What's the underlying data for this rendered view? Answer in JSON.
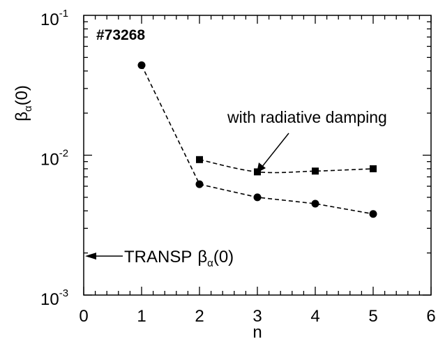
{
  "chart_data": {
    "type": "line",
    "title": "",
    "xlabel": "n",
    "ylabel": {
      "base": "β",
      "sub": "α",
      "tail": "(0)"
    },
    "xlim": [
      0,
      6
    ],
    "ylim": [
      0.001,
      0.1
    ],
    "yscale": "log",
    "x_ticks": [
      "0",
      "1",
      "2",
      "3",
      "4",
      "5",
      "6"
    ],
    "y_ticks": [
      {
        "base": "10",
        "exp": "-3",
        "value": 0.001
      },
      {
        "base": "10",
        "exp": "-2",
        "value": 0.01
      },
      {
        "base": "10",
        "exp": "-1",
        "value": 0.1
      }
    ],
    "grid": false,
    "series": [
      {
        "marker": "circle",
        "line": "dashed",
        "x": [
          1,
          2,
          3,
          4,
          5
        ],
        "y": [
          0.044,
          0.0062,
          0.005,
          0.0045,
          0.0038
        ]
      },
      {
        "name": "with radiative damping",
        "marker": "square",
        "line": "dashed",
        "x": [
          2,
          3,
          4,
          5
        ],
        "y": [
          0.0093,
          0.0076,
          0.0077,
          0.008
        ]
      }
    ],
    "annotations": {
      "shot": "#73268",
      "damping_label": "with radiative damping",
      "transp": {
        "text": "TRANSP",
        "base": "β",
        "sub": "α",
        "tail": "(0)",
        "value": 0.0019
      }
    }
  }
}
